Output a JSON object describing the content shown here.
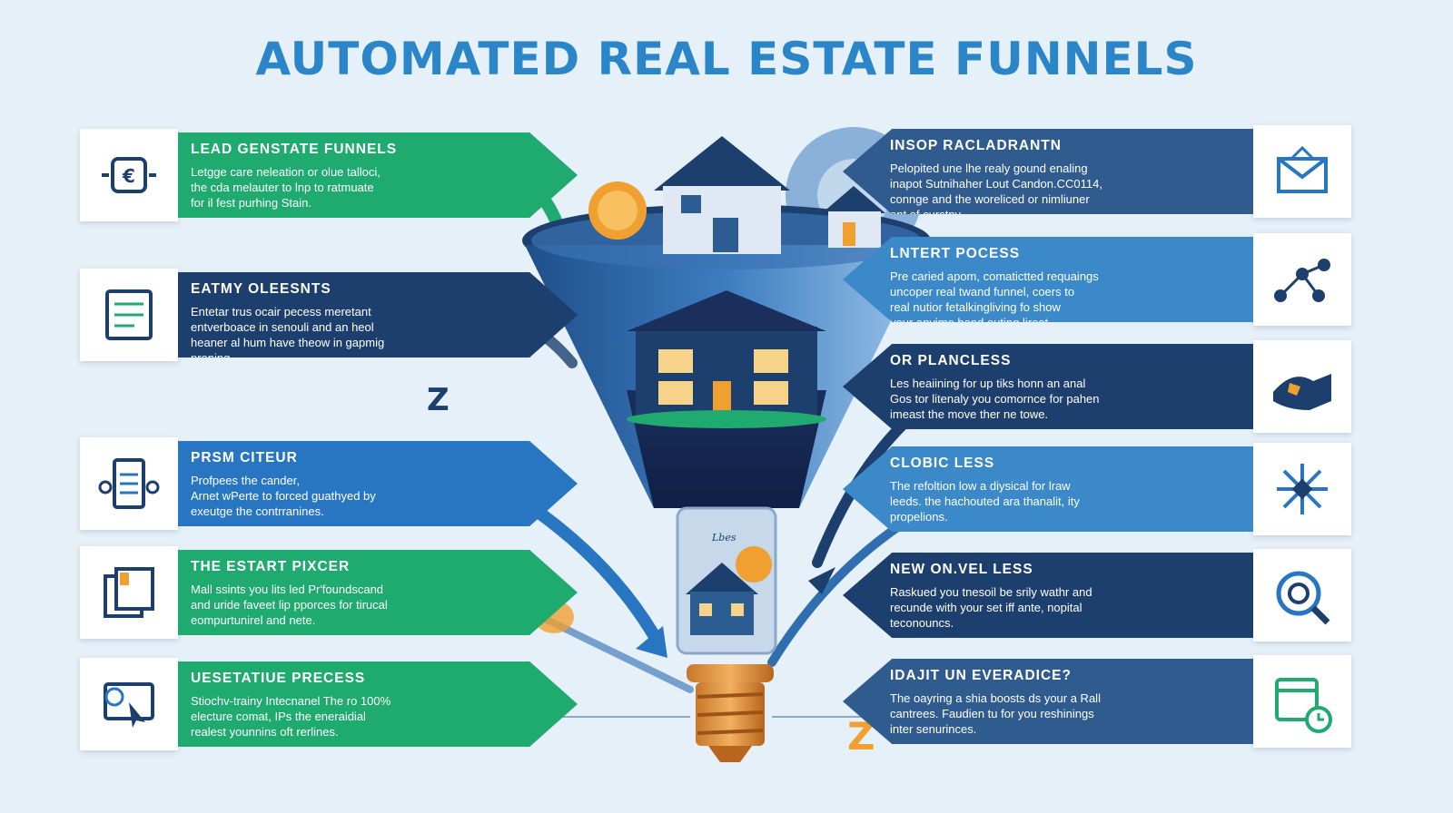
{
  "title": "AUTOMATED REAL ESTATE FUNNELS",
  "colors": {
    "green": "#1faa6f",
    "navy": "#1d3f6d",
    "blue": "#2876c2",
    "sky": "#3c89c9",
    "title": "#2a86c8",
    "orange": "#f0a030"
  },
  "left_steps": [
    {
      "title": "LEAD GENSTATE FUNNELS",
      "lines": [
        "Letgge care neleation or olue talloci,",
        "the cda melauter to lnp to ratmuate",
        "for il fest purhing Stain."
      ],
      "color": "green",
      "icon": "money-exchange-icon"
    },
    {
      "title": "EATMY OLEESNTS",
      "lines": [
        "Entetar trus ocair pecess meretant",
        "entverboace in senouli and an heol",
        "heaner al hum have theow in gapmig",
        "proning."
      ],
      "color": "navy",
      "icon": "checklist-document-icon"
    },
    {
      "title": "PRSM CITEUR",
      "lines": [
        "Profpees the cander,",
        "Arnet wPerte to forced guathyed by",
        "exeutge the contrranines."
      ],
      "color": "blue",
      "icon": "building-form-icon"
    },
    {
      "title": "THE ESTART PIXCER",
      "lines": [
        "Mall ssints you lits led Pr'foundscand",
        "and uride faveet lip pporces for tirucal",
        "eompurtunirel and nete."
      ],
      "color": "green",
      "icon": "documents-icon"
    },
    {
      "title": "UESETATIUE PRECESS",
      "lines": [
        "Stiochv-trainy Intecnanel The ro 100%",
        "electure comat, IPs the eneraidial",
        "realest younnins oft rerlines."
      ],
      "color": "green",
      "icon": "cursor-screen-icon"
    }
  ],
  "right_steps": [
    {
      "title": "INSOP RACLADRANTN",
      "lines": [
        "Pelopited une lhe realy gound enaling",
        "inapot Sutnihaher Lout Candon.CC0114,",
        "connge and the woreliced or nimliuner",
        "ont of curstny."
      ],
      "color": "slate",
      "icon": "envelope-icon"
    },
    {
      "title": "LNTERT POCESS",
      "lines": [
        "Pre caried apom, comatictted requaings",
        "uncoper real twand funnel, coers to",
        "real nutior fetalkingliving fo show",
        "your anvime hand outing lireat."
      ],
      "color": "sky",
      "icon": "network-nodes-icon"
    },
    {
      "title": "OR PLANCLESS",
      "lines": [
        "Les heaiining for up tiks honn an anal",
        "Gos tor litenaly you comornce for pahen",
        "imeast the move ther ne towe."
      ],
      "color": "navy",
      "icon": "handshake-map-icon"
    },
    {
      "title": "CLOBIC LESS",
      "lines": [
        "The refoltion low a diysical for lraw",
        "leeds. the hachouted ara thanalit, ity",
        "propelions."
      ],
      "color": "sky",
      "icon": "snowflake-pattern-icon"
    },
    {
      "title": "NEW ON.VEL LESS",
      "lines": [
        "Raskued you tnesoil be srily wathr and",
        "recunde with your set iff ante, nopital",
        "teconouncs."
      ],
      "color": "navy",
      "icon": "target-search-icon"
    },
    {
      "title": "IDAJIT UN EVERADICE?",
      "lines": [
        "The oayring a shia boosts ds your a Rall",
        "cantrees. Faudien tu for you reshinings",
        "inter senurinces."
      ],
      "color": "slate",
      "icon": "calendar-clock-icon"
    }
  ],
  "funnel_labels": {
    "house_sign": "Lbes"
  }
}
